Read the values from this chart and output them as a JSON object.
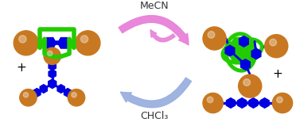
{
  "background_color": "#ffffff",
  "mecn_label": "MeCN",
  "chcl3_label_formatted": "CHCl₃",
  "arrow_pink_color": "#e882d8",
  "arrow_blue_color": "#9ab0e0",
  "sphere_color": "#c87820",
  "blue_color": "#0000e0",
  "green_color": "#22cc00",
  "text_color": "#333333",
  "font_size_label": 9.0
}
